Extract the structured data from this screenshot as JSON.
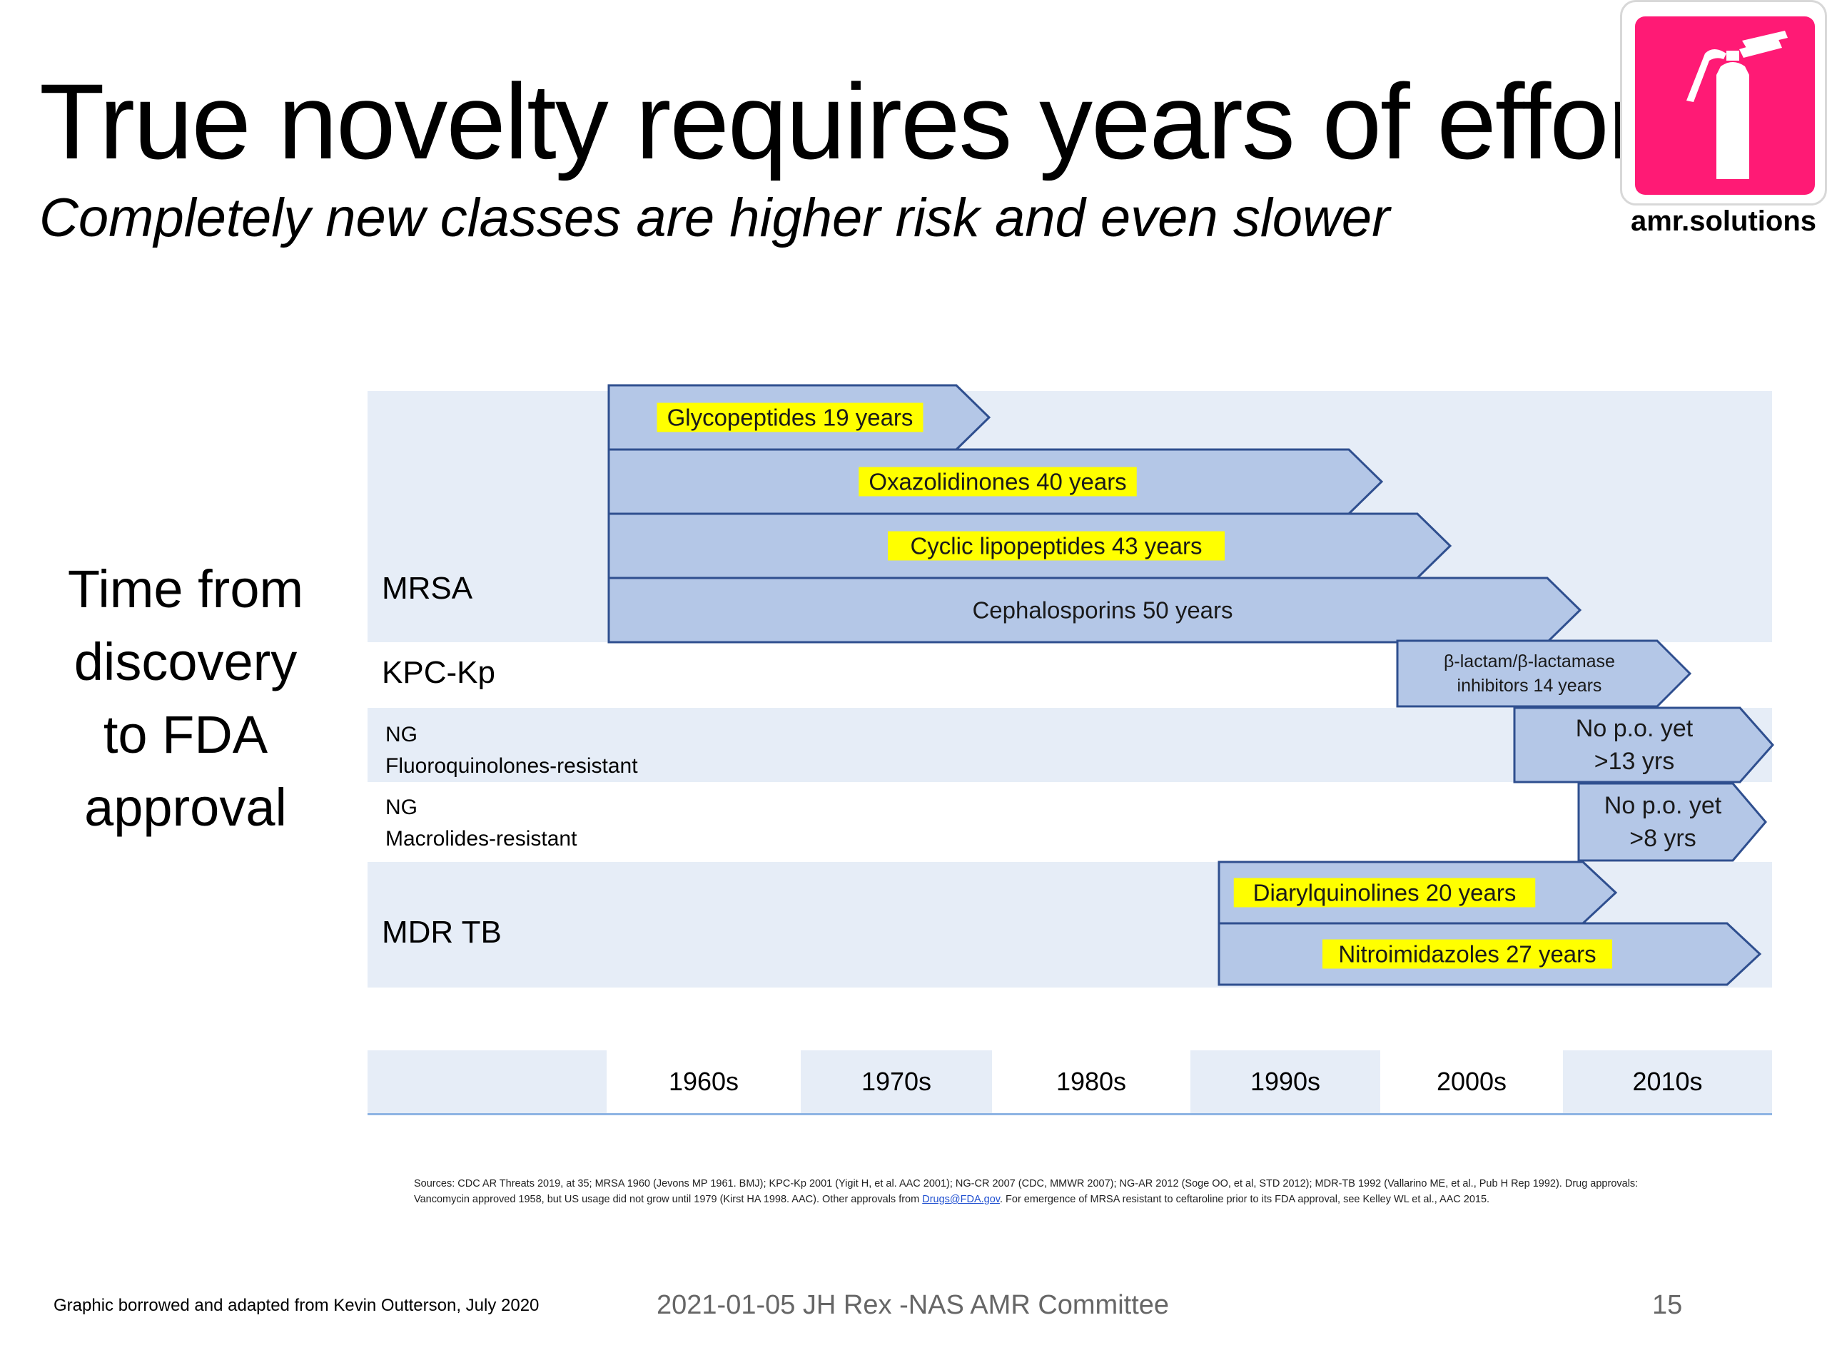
{
  "title": "True novelty requires years of effort",
  "subtitle": "Completely new classes are higher risk and even slower",
  "logo": {
    "text": "amr.solutions",
    "icon": "fire-extinguisher-icon",
    "color": "#ff1a75"
  },
  "side_label": [
    "Time from",
    "discovery",
    "to FDA",
    "approval"
  ],
  "rows": [
    {
      "label": "MRSA"
    },
    {
      "label": "KPC-Kp"
    },
    {
      "label_lines": [
        "NG",
        "Fluoroquinolones-resistant"
      ]
    },
    {
      "label_lines": [
        "NG",
        "Macrolides-resistant"
      ]
    },
    {
      "label": "MDR TB"
    }
  ],
  "arrows": [
    {
      "label": "Glycopeptides 19 years",
      "highlight": true
    },
    {
      "label": "Oxazolidinones 40 years",
      "highlight": true
    },
    {
      "label": "Cyclic lipopeptides 43 years",
      "highlight": true
    },
    {
      "label": "Cephalosporins 50 years",
      "highlight": false
    },
    {
      "label_lines": [
        "β-lactam/β-lactamase",
        "inhibitors 14 years"
      ],
      "highlight": false
    },
    {
      "label_lines": [
        "No p.o. yet",
        ">13 yrs"
      ],
      "highlight": false
    },
    {
      "label_lines": [
        "No p.o. yet",
        ">8 yrs"
      ],
      "highlight": false
    },
    {
      "label": "Diarylquinolines 20 years",
      "highlight": true
    },
    {
      "label": "Nitroimidazoles 27 years",
      "highlight": true
    }
  ],
  "decades": [
    "1960s",
    "1970s",
    "1980s",
    "1990s",
    "2000s",
    "2010s"
  ],
  "colors": {
    "band": "#e6edf7",
    "arrow_fill": "#b4c7e7",
    "arrow_stroke": "#2f4f8f",
    "highlight": "#ffff00"
  },
  "sources": {
    "text_before_link": "Sources: CDC AR Threats 2019, at 35; MRSA 1960 (Jevons MP 1961. BMJ); KPC-Kp 2001 (Yigit H, et al. AAC 2001); NG-CR 2007 (CDC, MMWR 2007); NG-AR 2012 (Soge OO, et al, STD 2012); MDR-TB 1992 (Vallarino ME, et al., Pub H Rep 1992). Drug approvals: Vancomycin approved 1958, but US usage did not grow until 1979 (Kirst HA 1998. AAC). Other approvals from",
    "link": "Drugs@FDA.gov",
    "text_after_link": ". For emergence of MRSA resistant to ceftaroline prior to its FDA approval, see Kelley WL et al., AAC 2015."
  },
  "footer": {
    "left": "Graphic borrowed and adapted from Kevin Outterson, July 2020",
    "center": "2021-01-05 JH Rex -NAS AMR Committee",
    "page": "15"
  }
}
